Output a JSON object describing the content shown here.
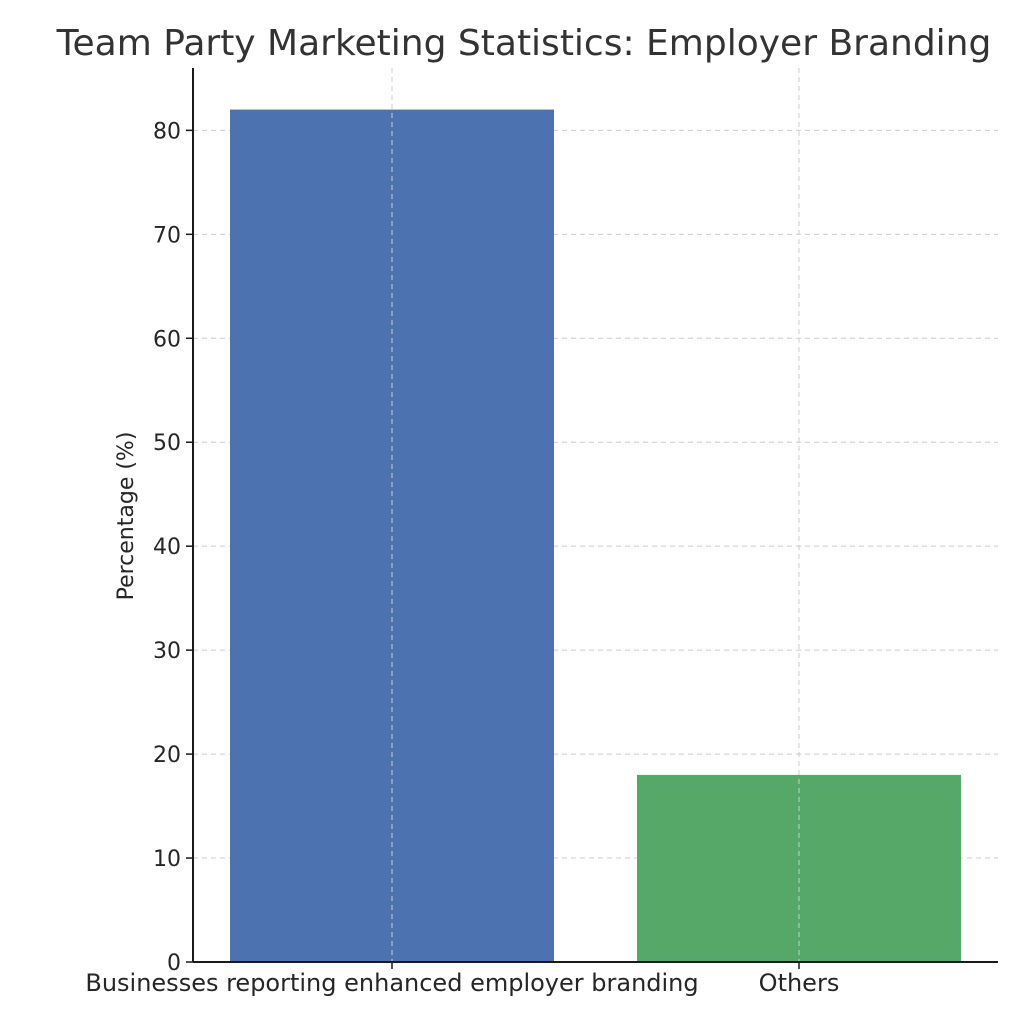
{
  "chart_data": {
    "type": "bar",
    "title": "Team Party Marketing Statistics: Employer Branding",
    "xlabel": "",
    "ylabel": "Percentage (%)",
    "categories": [
      "Businesses reporting enhanced employer branding",
      "Others"
    ],
    "values": [
      82,
      18
    ],
    "colors": [
      "#4c72b0",
      "#55a868"
    ],
    "ylim": [
      0,
      86
    ],
    "yticks": [
      0,
      10,
      20,
      30,
      40,
      50,
      60,
      70,
      80
    ],
    "grid": true
  }
}
